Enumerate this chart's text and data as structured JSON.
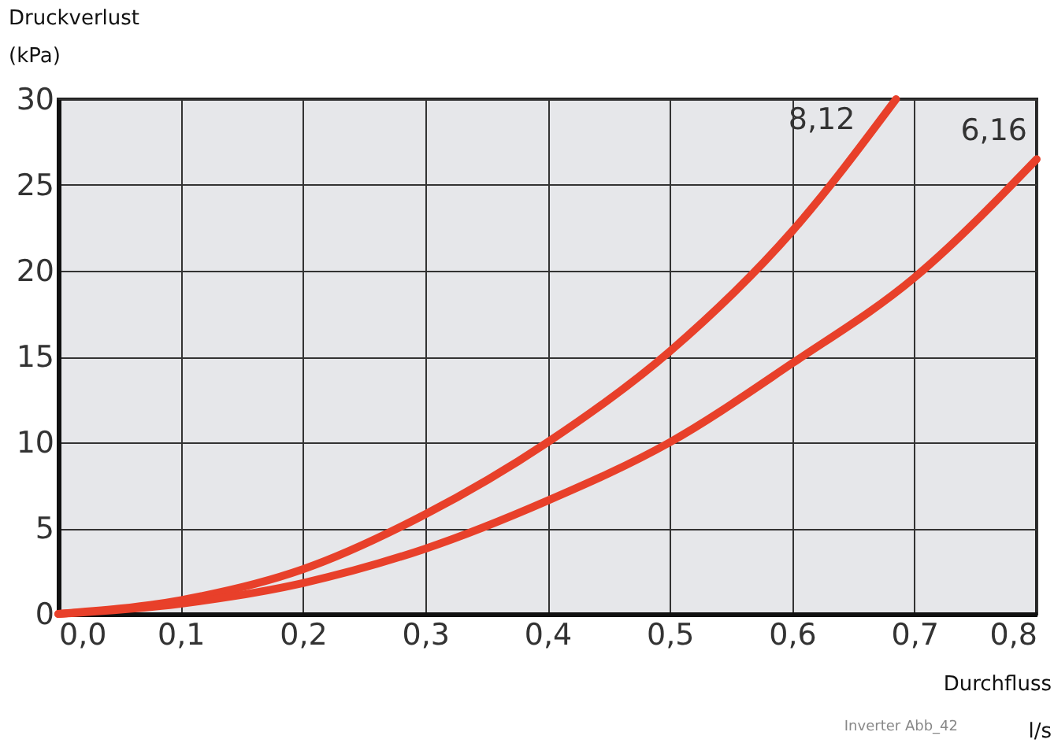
{
  "chart_data": {
    "type": "line",
    "xlabel": "Durchfluss\nl/s",
    "ylabel": "Druckverlust\n(kPa)",
    "x": [
      0,
      0.1,
      0.2,
      0.3,
      0.4,
      0.5,
      0.6,
      0.7,
      0.8
    ],
    "series": [
      {
        "name": "8,12",
        "color": "#e8402a",
        "x": [
          0,
          0.1,
          0.2,
          0.3,
          0.4,
          0.5,
          0.6,
          0.685
        ],
        "values": [
          0,
          0.8,
          2.6,
          5.8,
          10.0,
          15.3,
          22.3,
          30
        ]
      },
      {
        "name": "6,16",
        "color": "#e8402a",
        "values": [
          0,
          0.6,
          1.8,
          3.8,
          6.6,
          10.0,
          14.6,
          19.6,
          26.5
        ]
      }
    ],
    "xlim": [
      0,
      0.8
    ],
    "ylim": [
      0,
      30
    ],
    "xticks": [
      {
        "value": 0,
        "label": "0,0"
      },
      {
        "value": 0.1,
        "label": "0,1"
      },
      {
        "value": 0.2,
        "label": "0,2"
      },
      {
        "value": 0.3,
        "label": "0,3"
      },
      {
        "value": 0.4,
        "label": "0,4"
      },
      {
        "value": 0.5,
        "label": "0,5"
      },
      {
        "value": 0.6,
        "label": "0,6"
      },
      {
        "value": 0.7,
        "label": "0,7"
      },
      {
        "value": 0.8,
        "label": "0,8"
      }
    ],
    "yticks": [
      0,
      5,
      10,
      15,
      20,
      25,
      30
    ],
    "grid": true,
    "legend": false,
    "marker": "none",
    "line_style": "solid",
    "annotations": [
      "Inverter Abb_42"
    ]
  }
}
